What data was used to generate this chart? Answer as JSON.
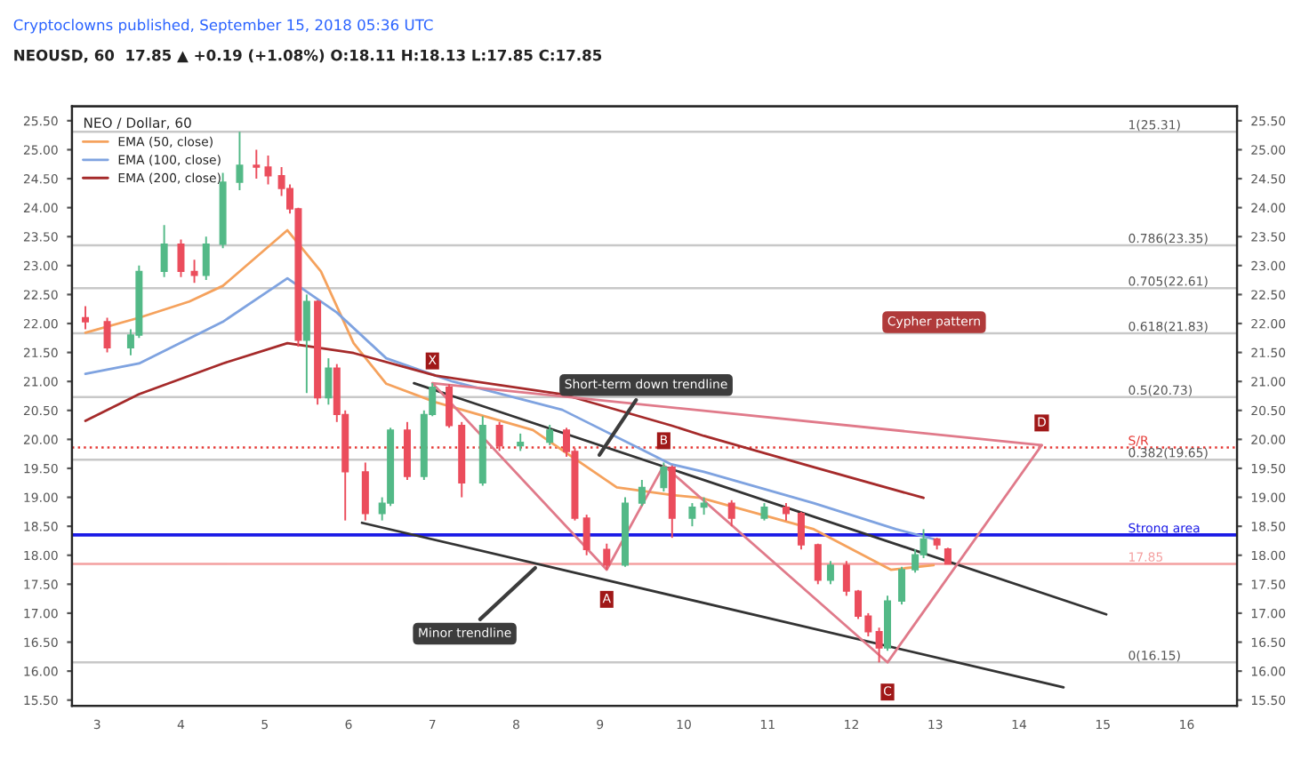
{
  "chart_data": {
    "type": "candlestick",
    "title": "Cryptoclowns published, September 15, 2018 05:36 UTC",
    "subtitle": "NEOUSD, 60  17.85 ▲ +0.19 (+1.08%) O:18.11 H:18.13 L:17.85 C:17.85",
    "legend_title": "NEO / Dollar, 60",
    "legend": "top left",
    "grid": false,
    "x": [
      2.86,
      3.12,
      3.4,
      3.5,
      3.8,
      4.0,
      4.16,
      4.3,
      4.5,
      4.7,
      4.9,
      5.04,
      5.2,
      5.3,
      5.4,
      5.5,
      5.63,
      5.76,
      5.86,
      5.96,
      6.2,
      6.4,
      6.5,
      6.7,
      6.9,
      7.0,
      7.2,
      7.35,
      7.6,
      7.8,
      8.05,
      8.4,
      8.6,
      8.7,
      8.84,
      9.08,
      9.3,
      9.5,
      9.76,
      9.86,
      10.1,
      10.24,
      10.57,
      10.96,
      11.22,
      11.4,
      11.6,
      11.75,
      11.94,
      12.08,
      12.2,
      12.33,
      12.43,
      12.6,
      12.76,
      12.86,
      13.02,
      13.15
    ],
    "ohlc": [
      [
        22.1,
        22.3,
        21.9,
        22.03
      ],
      [
        22.03,
        22.1,
        21.5,
        21.58
      ],
      [
        21.58,
        21.9,
        21.45,
        21.8
      ],
      [
        21.8,
        23.0,
        21.75,
        22.9
      ],
      [
        22.9,
        23.7,
        22.8,
        23.37
      ],
      [
        23.37,
        23.45,
        22.8,
        22.9
      ],
      [
        22.9,
        23.1,
        22.7,
        22.83
      ],
      [
        22.83,
        23.5,
        22.75,
        23.37
      ],
      [
        23.37,
        24.6,
        23.3,
        24.44
      ],
      [
        24.44,
        25.31,
        24.3,
        24.73
      ],
      [
        24.73,
        25.0,
        24.5,
        24.7
      ],
      [
        24.7,
        24.9,
        24.4,
        24.55
      ],
      [
        24.55,
        24.7,
        24.2,
        24.33
      ],
      [
        24.33,
        24.4,
        23.9,
        23.98
      ],
      [
        23.98,
        24.0,
        21.6,
        21.71
      ],
      [
        21.71,
        22.5,
        20.8,
        22.38
      ],
      [
        22.38,
        22.4,
        20.6,
        20.72
      ],
      [
        20.72,
        21.4,
        20.6,
        21.23
      ],
      [
        21.23,
        21.3,
        20.3,
        20.43
      ],
      [
        20.43,
        20.5,
        18.6,
        19.44
      ],
      [
        19.44,
        19.6,
        18.6,
        18.72
      ],
      [
        18.72,
        19.0,
        18.6,
        18.9
      ],
      [
        18.9,
        20.2,
        18.85,
        20.16
      ],
      [
        20.16,
        20.3,
        19.3,
        19.36
      ],
      [
        19.36,
        20.5,
        19.3,
        20.43
      ],
      [
        20.43,
        20.97,
        20.4,
        20.9
      ],
      [
        20.9,
        20.95,
        20.2,
        20.24
      ],
      [
        20.24,
        20.3,
        19.0,
        19.25
      ],
      [
        19.25,
        20.4,
        19.2,
        20.24
      ],
      [
        20.24,
        20.3,
        19.8,
        19.89
      ],
      [
        19.89,
        20.1,
        19.8,
        19.95
      ],
      [
        19.95,
        20.25,
        19.9,
        20.16
      ],
      [
        20.16,
        20.2,
        19.7,
        19.79
      ],
      [
        19.79,
        19.85,
        18.6,
        18.64
      ],
      [
        18.64,
        18.7,
        18.0,
        18.1
      ],
      [
        18.1,
        18.2,
        17.75,
        17.83
      ],
      [
        17.83,
        19.0,
        17.8,
        18.9
      ],
      [
        18.9,
        19.3,
        18.85,
        19.17
      ],
      [
        19.17,
        19.6,
        19.1,
        19.52
      ],
      [
        19.52,
        19.55,
        18.3,
        18.64
      ],
      [
        18.64,
        18.9,
        18.5,
        18.83
      ],
      [
        18.83,
        19.0,
        18.7,
        18.9
      ],
      [
        18.9,
        18.95,
        18.5,
        18.64
      ],
      [
        18.64,
        18.9,
        18.6,
        18.83
      ],
      [
        18.83,
        18.9,
        18.6,
        18.72
      ],
      [
        18.72,
        18.75,
        18.1,
        18.18
      ],
      [
        18.18,
        18.2,
        17.5,
        17.57
      ],
      [
        17.57,
        17.9,
        17.5,
        17.83
      ],
      [
        17.83,
        17.9,
        17.3,
        17.38
      ],
      [
        17.38,
        17.4,
        16.9,
        16.95
      ],
      [
        16.95,
        17.0,
        16.6,
        16.68
      ],
      [
        16.68,
        16.75,
        16.15,
        16.4
      ],
      [
        16.4,
        17.3,
        16.35,
        17.21
      ],
      [
        17.21,
        17.8,
        17.15,
        17.75
      ],
      [
        17.75,
        18.1,
        17.7,
        18.01
      ],
      [
        18.01,
        18.45,
        17.95,
        18.28
      ],
      [
        18.28,
        18.3,
        18.1,
        18.18
      ],
      [
        18.11,
        18.13,
        17.85,
        17.85
      ]
    ],
    "series": [
      {
        "type": "line",
        "name": "EMA (50, close)",
        "color": "#f5a25d",
        "x": [
          2.86,
          3.5,
          4.1,
          4.5,
          5.27,
          5.67,
          6.06,
          6.45,
          7.04,
          8.2,
          9.2,
          9.85,
          10.2,
          11.55,
          12.47,
          12.98
        ],
        "values": [
          21.84,
          22.1,
          22.38,
          22.65,
          23.61,
          22.9,
          21.66,
          20.96,
          20.64,
          20.16,
          19.17,
          19.04,
          18.99,
          18.45,
          17.75,
          17.83
        ]
      },
      {
        "type": "line",
        "name": "EMA (100, close)",
        "color": "#7fa3e0",
        "x": [
          2.86,
          3.5,
          4.5,
          5.27,
          5.86,
          6.45,
          7.24,
          8.55,
          9.85,
          10.24,
          11.55,
          12.53,
          12.98
        ],
        "values": [
          21.13,
          21.31,
          22.03,
          22.78,
          22.19,
          21.4,
          21.0,
          20.51,
          19.57,
          19.44,
          18.9,
          18.45,
          18.28
        ]
      },
      {
        "type": "line",
        "name": "EMA (200, close)",
        "color": "#a52a2a",
        "x": [
          2.86,
          3.5,
          4.5,
          5.27,
          6.06,
          7.04,
          8.55,
          9.85,
          10.24,
          11.55,
          12.86
        ],
        "values": [
          20.32,
          20.78,
          21.31,
          21.66,
          21.49,
          21.1,
          20.78,
          20.24,
          20.06,
          19.52,
          18.99
        ]
      },
      {
        "type": "line",
        "color": "#333333",
        "x": [
          6.78,
          15.04
        ],
        "values": [
          20.97,
          16.98
        ]
      },
      {
        "type": "line",
        "color": "#333333",
        "x": [
          6.16,
          14.53
        ],
        "values": [
          18.56,
          15.72
        ]
      },
      {
        "type": "line",
        "color": "#e07a8a",
        "x": [
          7.0,
          9.08,
          9.76,
          12.43,
          14.27
        ],
        "values": [
          20.97,
          17.75,
          19.55,
          16.15,
          19.9
        ]
      },
      {
        "type": "line",
        "color": "#e07a8a",
        "x": [
          7.0,
          14.27
        ],
        "values": [
          20.97,
          19.9
        ]
      }
    ],
    "ref_lines": [
      {
        "axis": "y",
        "value": 25.31,
        "label": "1(25.31)",
        "color": "#c8c8c8"
      },
      {
        "axis": "y",
        "value": 23.35,
        "label": "0.786(23.35)",
        "color": "#c8c8c8"
      },
      {
        "axis": "y",
        "value": 22.61,
        "label": "0.705(22.61)",
        "color": "#c8c8c8"
      },
      {
        "axis": "y",
        "value": 21.83,
        "label": "0.618(21.83)",
        "color": "#c8c8c8"
      },
      {
        "axis": "y",
        "value": 20.73,
        "label": "0.5(20.73)",
        "color": "#c8c8c8"
      },
      {
        "axis": "y",
        "value": 19.65,
        "label": "0.382(19.65)",
        "color": "#c8c8c8"
      },
      {
        "axis": "y",
        "value": 16.15,
        "label": "0(16.15)",
        "color": "#c8c8c8"
      },
      {
        "axis": "y",
        "value": 19.86,
        "label": "S/R",
        "color": "#e53935",
        "line_style": "dotted"
      },
      {
        "axis": "y",
        "value": 18.35,
        "label": "Strong area",
        "color": "#1a1ae6"
      },
      {
        "axis": "y",
        "value": 17.85,
        "label": "17.85",
        "color": "#f4a0a0"
      }
    ],
    "annotations": [
      {
        "text": "X",
        "x": 7.0,
        "y": 20.97
      },
      {
        "text": "A",
        "x": 9.08,
        "y": 17.75
      },
      {
        "text": "B",
        "x": 9.76,
        "y": 19.55
      },
      {
        "text": "C",
        "x": 12.43,
        "y": 16.15
      },
      {
        "text": "D",
        "x": 14.27,
        "y": 19.9
      },
      {
        "text": "Short-term down trendline",
        "x": 8.96,
        "y": 19.66
      },
      {
        "text": "Minor trendline",
        "x": 8.27,
        "y": 17.84
      },
      "Cypher pattern"
    ],
    "xlim": [
      2.7,
      16.6
    ],
    "xticks": [
      3,
      4,
      5,
      6,
      7,
      8,
      9,
      10,
      11,
      12,
      13,
      14,
      15,
      16
    ],
    "ylim": [
      15.4,
      25.75
    ],
    "yticks": [
      {
        "value": 15.5,
        "label": "15.50"
      },
      {
        "value": 16,
        "label": "16.00"
      },
      {
        "value": 16.5,
        "label": "16.50"
      },
      {
        "value": 17,
        "label": "17.00"
      },
      {
        "value": 17.5,
        "label": "17.50"
      },
      {
        "value": 18,
        "label": "18.00"
      },
      {
        "value": 18.5,
        "label": "18.50"
      },
      {
        "value": 19,
        "label": "19.00"
      },
      {
        "value": 19.5,
        "label": "19.50"
      },
      {
        "value": 20,
        "label": "20.00"
      },
      {
        "value": 20.5,
        "label": "20.50"
      },
      {
        "value": 21,
        "label": "21.00"
      },
      {
        "value": 21.5,
        "label": "21.50"
      },
      {
        "value": 22,
        "label": "22.00"
      },
      {
        "value": 22.5,
        "label": "22.50"
      },
      {
        "value": 23,
        "label": "23.00"
      },
      {
        "value": 23.5,
        "label": "23.50"
      },
      {
        "value": 24,
        "label": "24.00"
      },
      {
        "value": 24.5,
        "label": "24.50"
      },
      {
        "value": 25,
        "label": "25.00"
      },
      {
        "value": 25.5,
        "label": "25.50"
      }
    ],
    "y2lim": [
      15.4,
      25.75
    ],
    "y2ticks": [
      {
        "value": 15.5,
        "label": "15.50"
      },
      {
        "value": 16,
        "label": "16.00"
      },
      {
        "value": 16.5,
        "label": "16.50"
      },
      {
        "value": 17,
        "label": "17.00"
      },
      {
        "value": 17.5,
        "label": "17.50"
      },
      {
        "value": 18,
        "label": "18.00"
      },
      {
        "value": 18.5,
        "label": "18.50"
      },
      {
        "value": 19,
        "label": "19.00"
      },
      {
        "value": 19.5,
        "label": "19.50"
      },
      {
        "value": 20,
        "label": "20.00"
      },
      {
        "value": 20.5,
        "label": "20.50"
      },
      {
        "value": 21,
        "label": "21.00"
      },
      {
        "value": 21.5,
        "label": "21.50"
      },
      {
        "value": 22,
        "label": "22.00"
      },
      {
        "value": 22.5,
        "label": "22.50"
      },
      {
        "value": 23,
        "label": "23.00"
      },
      {
        "value": 23.5,
        "label": "23.50"
      },
      {
        "value": 24,
        "label": "24.00"
      },
      {
        "value": 24.5,
        "label": "24.50"
      },
      {
        "value": 25,
        "label": "25.00"
      },
      {
        "value": 25.5,
        "label": "25.50"
      }
    ]
  }
}
